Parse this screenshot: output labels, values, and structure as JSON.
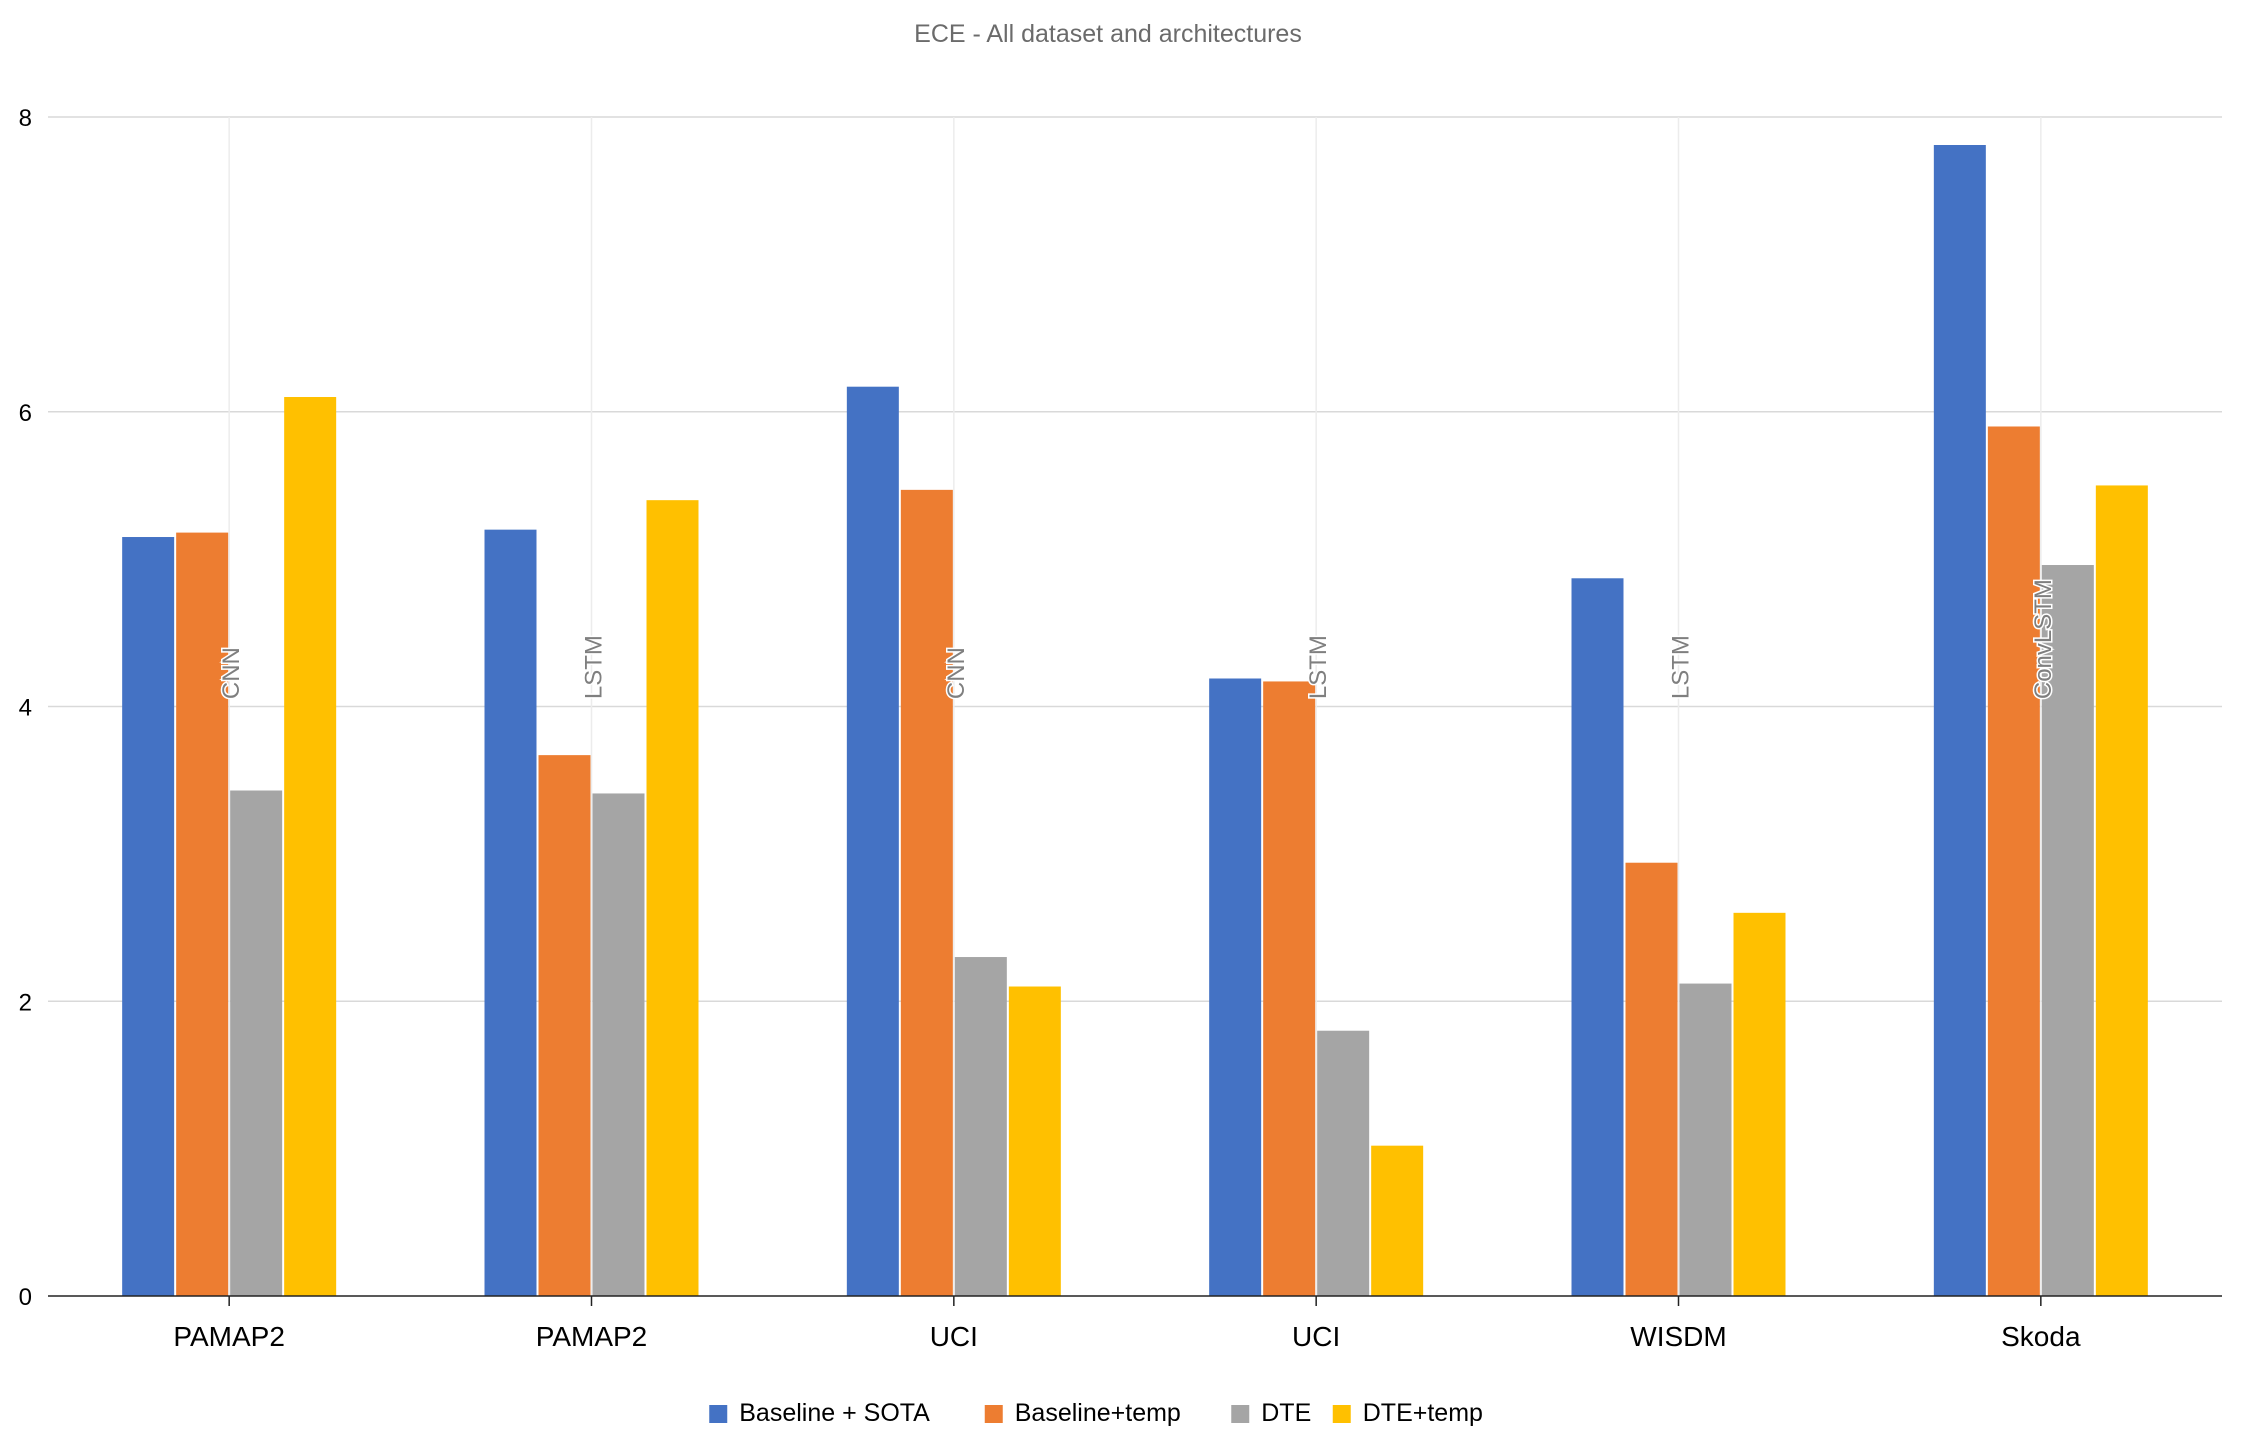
{
  "chart_data": {
    "type": "bar",
    "title": "ECE - All dataset and architectures",
    "xlabel": "",
    "ylabel": "",
    "ylim": [
      0,
      8
    ],
    "yticks": [
      "0",
      "2",
      "4",
      "6",
      "8"
    ],
    "grid": true,
    "legend_position": "bottom",
    "categories": [
      "PAMAP2",
      "PAMAP2",
      "UCI",
      "UCI",
      "WISDM",
      "Skoda"
    ],
    "group_annotations": [
      "CNN",
      "LSTM",
      "CNN",
      "LSTM",
      "LSTM",
      "ConvLSTM"
    ],
    "series": [
      {
        "name": "Baseline + SOTA",
        "color": "#4472C4",
        "values": [
          5.15,
          5.2,
          6.17,
          4.19,
          4.87,
          7.81
        ]
      },
      {
        "name": "Baseline+temp",
        "color": "#ED7D31",
        "values": [
          5.18,
          3.67,
          5.47,
          4.17,
          2.94,
          5.9
        ]
      },
      {
        "name": "DTE",
        "color": "#A5A5A5",
        "values": [
          3.43,
          3.41,
          2.3,
          1.8,
          2.12,
          4.96
        ]
      },
      {
        "name": "DTE+temp",
        "color": "#FFC000",
        "values": [
          6.1,
          5.4,
          2.1,
          1.02,
          2.6,
          5.5
        ]
      }
    ]
  }
}
